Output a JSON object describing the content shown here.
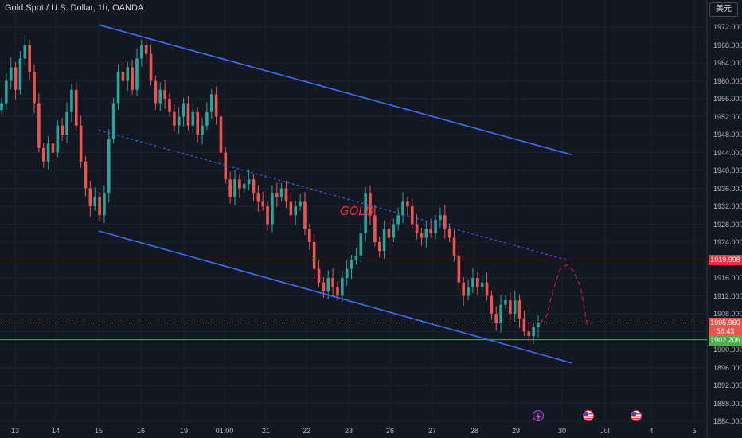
{
  "header": {
    "symbol_title": "Gold Spot / U.S. Dollar, 1h, OANDA",
    "currency_button": "美元"
  },
  "colors": {
    "background": "#131722",
    "grid": "#1e222d",
    "up_candle": "#26a69a",
    "down_candle": "#ef5350",
    "channel": "#3b6ef5",
    "resistance": "#e8323f",
    "support": "#4caf50"
  },
  "annotations": {
    "gold_label": "GOLD"
  },
  "price_tags": {
    "resistance": "1919.998",
    "last_price": "1905.960",
    "countdown": "56:43",
    "support": "1902.206"
  },
  "event_icons": [
    "lightning-icon",
    "us-flag-icon",
    "us-flag-icon"
  ],
  "chart_data": {
    "type": "candlestick",
    "title": "Gold Spot / U.S. Dollar, 1h, OANDA",
    "y_axis": {
      "ticks": [
        "1972.000",
        "1968.000",
        "1964.000",
        "1960.000",
        "1956.000",
        "1952.000",
        "1948.000",
        "1944.000",
        "1940.000",
        "1936.000",
        "1932.000",
        "1928.000",
        "1924.000",
        "1920.000",
        "1916.000",
        "1912.000",
        "1908.000",
        "1904.000",
        "1900.000",
        "1896.000",
        "1892.000",
        "1888.000",
        "1884.000"
      ],
      "range": [
        1883,
        1975
      ]
    },
    "x_axis": {
      "ticks": [
        "13",
        "14",
        "15",
        "16",
        "19",
        "01:00",
        "21",
        "22",
        "23",
        "26",
        "27",
        "28",
        "29",
        "30",
        "Jul",
        "4",
        "5"
      ]
    },
    "horizontal_levels": [
      {
        "name": "resistance",
        "value": 1919.998
      },
      {
        "name": "last",
        "value": 1905.96
      },
      {
        "name": "support",
        "value": 1902.206
      }
    ],
    "close_path": [
      1955,
      1960,
      1963,
      1958,
      1965,
      1968,
      1962,
      1955,
      1945,
      1942,
      1946,
      1944,
      1950,
      1948,
      1953,
      1958,
      1950,
      1942,
      1936,
      1932,
      1934,
      1930,
      1935,
      1947,
      1955,
      1962,
      1960,
      1963,
      1958,
      1965,
      1968,
      1966,
      1960,
      1955,
      1958,
      1956,
      1953,
      1950,
      1952,
      1955,
      1950,
      1953,
      1948,
      1950,
      1953,
      1957,
      1952,
      1944,
      1938,
      1934,
      1938,
      1936,
      1937,
      1938,
      1935,
      1933,
      1932,
      1928,
      1935,
      1934,
      1936,
      1933,
      1930,
      1932,
      1933,
      1927,
      1924,
      1918,
      1915,
      1913,
      1916,
      1914,
      1912,
      1916,
      1918,
      1920,
      1921,
      1926,
      1935,
      1930,
      1924,
      1922,
      1927,
      1925,
      1928,
      1930,
      1933,
      1932,
      1928,
      1926,
      1925,
      1927,
      1926,
      1929,
      1930,
      1927,
      1925,
      1921,
      1915,
      1912,
      1914,
      1916,
      1914,
      1915,
      1912,
      1908,
      1906,
      1910,
      1911,
      1908,
      1911,
      1907,
      1904,
      1903,
      1905,
      1906
    ],
    "channel_upper": {
      "start": {
        "x": "15",
        "y": 1972.5
      },
      "end": {
        "x": "30",
        "y": 1943.5
      }
    },
    "channel_lower": {
      "start": {
        "x": "15",
        "y": 1926.5
      },
      "end": {
        "x": "30",
        "y": 1897.0
      }
    },
    "channel_mid_dashed": {
      "start": {
        "x": "15",
        "y": 1949.0
      },
      "end": {
        "x": "30",
        "y": 1920.0
      }
    },
    "projection_dashed": [
      1905.9,
      1907.5,
      1913.5,
      1918.0,
      1919.0,
      1917.5,
      1914.0,
      1905.0
    ]
  }
}
